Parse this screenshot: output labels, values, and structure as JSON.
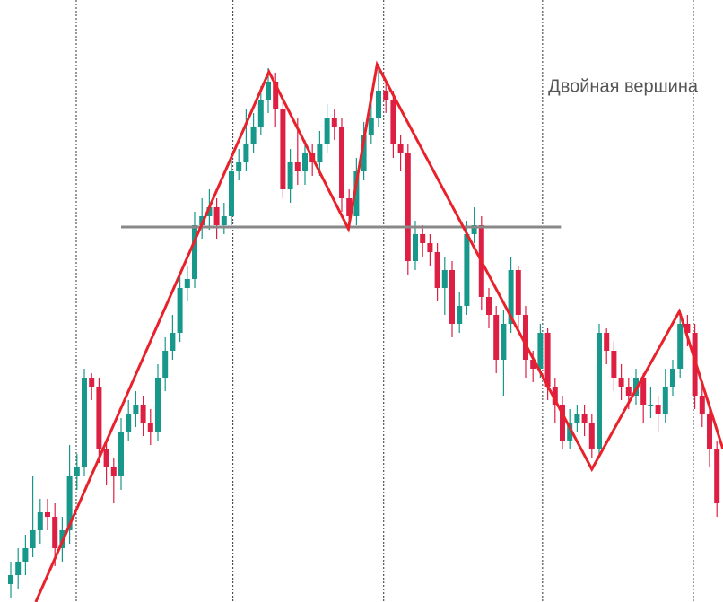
{
  "chart_data": {
    "type": "candlestick",
    "annotation": "Двойная вершина",
    "xlim": [
      -1.463,
      96.83
    ],
    "ylim": [
      0,
      671
    ],
    "up_color": "#17988a",
    "down_color": "#dd1f44",
    "open": [
      20,
      30,
      45,
      60,
      80,
      100,
      95,
      60,
      80,
      140,
      150,
      250,
      240,
      170,
      150,
      140,
      190,
      210,
      220,
      200,
      190,
      250,
      280,
      300,
      350,
      360,
      420,
      430,
      440,
      420,
      430,
      480,
      490,
      510,
      530,
      560,
      580,
      550,
      460,
      490,
      480,
      500,
      490,
      510,
      540,
      530,
      450,
      430,
      480,
      520,
      540,
      570,
      560,
      510,
      500,
      380,
      410,
      400,
      390,
      350,
      370,
      310,
      330,
      410,
      420,
      340,
      320,
      270,
      310,
      370,
      320,
      270,
      260,
      300,
      240,
      220,
      180,
      200,
      210,
      200,
      170,
      300,
      280,
      250,
      240,
      230,
      250,
      220,
      220,
      210,
      240,
      260,
      310,
      300,
      230,
      210,
      170
    ],
    "high": [
      45,
      60,
      75,
      140,
      115,
      115,
      110,
      95,
      175,
      165,
      260,
      255,
      250,
      180,
      160,
      205,
      225,
      235,
      230,
      215,
      265,
      295,
      320,
      365,
      375,
      435,
      450,
      460,
      450,
      445,
      495,
      505,
      550,
      545,
      575,
      595,
      590,
      560,
      505,
      540,
      515,
      510,
      525,
      555,
      550,
      540,
      460,
      495,
      535,
      565,
      600,
      580,
      570,
      520,
      510,
      425,
      420,
      410,
      400,
      385,
      380,
      345,
      425,
      440,
      430,
      350,
      330,
      325,
      385,
      375,
      330,
      280,
      310,
      305,
      250,
      230,
      215,
      220,
      220,
      210,
      310,
      305,
      290,
      265,
      250,
      260,
      255,
      240,
      230,
      260,
      270,
      325,
      320,
      310,
      240,
      220,
      180
    ],
    "low": [
      5,
      15,
      30,
      50,
      65,
      80,
      40,
      45,
      65,
      125,
      140,
      225,
      155,
      130,
      110,
      125,
      180,
      195,
      185,
      175,
      180,
      235,
      270,
      290,
      335,
      350,
      405,
      415,
      405,
      410,
      420,
      470,
      480,
      500,
      520,
      545,
      530,
      450,
      445,
      465,
      465,
      475,
      475,
      500,
      515,
      435,
      415,
      420,
      470,
      510,
      530,
      545,
      495,
      480,
      365,
      370,
      385,
      375,
      335,
      320,
      295,
      300,
      320,
      400,
      325,
      305,
      255,
      230,
      300,
      305,
      250,
      245,
      250,
      225,
      200,
      170,
      170,
      190,
      185,
      160,
      160,
      265,
      235,
      225,
      215,
      220,
      200,
      205,
      190,
      200,
      230,
      250,
      285,
      215,
      195,
      150,
      95
    ],
    "close": [
      30,
      45,
      60,
      80,
      100,
      95,
      60,
      80,
      140,
      150,
      250,
      240,
      170,
      150,
      140,
      190,
      210,
      220,
      200,
      190,
      250,
      280,
      300,
      350,
      360,
      420,
      430,
      440,
      420,
      430,
      480,
      490,
      510,
      530,
      560,
      580,
      550,
      460,
      490,
      480,
      500,
      490,
      510,
      540,
      530,
      450,
      430,
      480,
      520,
      540,
      570,
      560,
      510,
      500,
      380,
      410,
      400,
      390,
      350,
      370,
      310,
      330,
      410,
      420,
      340,
      320,
      270,
      310,
      370,
      320,
      270,
      260,
      300,
      240,
      220,
      180,
      200,
      210,
      200,
      170,
      300,
      280,
      250,
      240,
      230,
      250,
      220,
      220,
      210,
      240,
      260,
      310,
      300,
      230,
      210,
      170,
      110
    ],
    "zigzag": {
      "color": "#e8212b",
      "x": [
        3.4,
        35.1,
        45.9,
        49.8,
        79.0,
        90.9,
        96.8
      ],
      "y": [
        0,
        591,
        416,
        599,
        148,
        324,
        171
      ]
    },
    "level": {
      "color": "#888888",
      "value": 418,
      "x": [
        15,
        74.8
      ]
    },
    "vlines": [
      8.9,
      30.2,
      50.7,
      72.3,
      92.8
    ]
  }
}
